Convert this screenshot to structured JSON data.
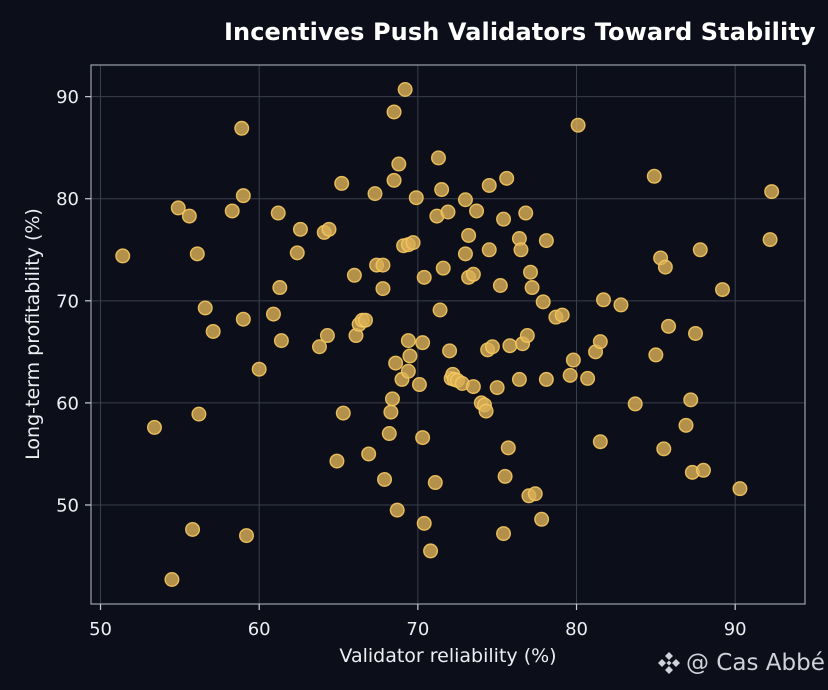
{
  "chart_data": {
    "type": "scatter",
    "title": "Incentives Push Validators Toward Stability",
    "xlabel": "Validator reliability (%)",
    "ylabel": "Long-term profitability (%)",
    "xlim": [
      49.4,
      94.4
    ],
    "ylim": [
      40.3,
      93.1
    ],
    "xticks": [
      50,
      60,
      70,
      80,
      90
    ],
    "yticks": [
      50,
      60,
      70,
      80,
      90
    ],
    "grid": true,
    "legend": "none",
    "marker_color": "#d9ae55",
    "marker_edge_color": "#f5c85f",
    "background_color": "#0c0f1a",
    "points": [
      [
        51.4,
        74.4
      ],
      [
        53.4,
        57.6
      ],
      [
        54.5,
        42.7
      ],
      [
        54.9,
        79.1
      ],
      [
        55.6,
        78.3
      ],
      [
        55.8,
        47.6
      ],
      [
        56.1,
        74.6
      ],
      [
        56.2,
        58.9
      ],
      [
        56.6,
        69.3
      ],
      [
        57.1,
        67.0
      ],
      [
        58.3,
        78.8
      ],
      [
        58.9,
        86.9
      ],
      [
        59.0,
        80.3
      ],
      [
        59.0,
        68.2
      ],
      [
        59.2,
        47.0
      ],
      [
        60.0,
        63.3
      ],
      [
        60.9,
        68.7
      ],
      [
        61.2,
        78.6
      ],
      [
        61.3,
        71.3
      ],
      [
        61.4,
        66.1
      ],
      [
        62.4,
        74.7
      ],
      [
        62.6,
        77.0
      ],
      [
        63.8,
        65.5
      ],
      [
        64.1,
        76.7
      ],
      [
        64.4,
        77.0
      ],
      [
        64.3,
        66.6
      ],
      [
        64.9,
        54.3
      ],
      [
        65.2,
        81.5
      ],
      [
        65.3,
        59.0
      ],
      [
        66.0,
        72.5
      ],
      [
        66.1,
        66.6
      ],
      [
        66.3,
        67.7
      ],
      [
        66.5,
        68.1
      ],
      [
        66.7,
        68.1
      ],
      [
        66.9,
        55.0
      ],
      [
        67.3,
        80.5
      ],
      [
        67.4,
        73.5
      ],
      [
        67.8,
        73.5
      ],
      [
        67.8,
        71.2
      ],
      [
        67.9,
        52.5
      ],
      [
        68.2,
        57.0
      ],
      [
        68.3,
        59.1
      ],
      [
        68.4,
        60.4
      ],
      [
        68.5,
        81.8
      ],
      [
        68.5,
        88.5
      ],
      [
        68.6,
        63.9
      ],
      [
        68.7,
        49.5
      ],
      [
        68.8,
        83.4
      ],
      [
        69.0,
        62.3
      ],
      [
        69.1,
        75.4
      ],
      [
        69.2,
        90.7
      ],
      [
        69.4,
        63.1
      ],
      [
        69.4,
        75.5
      ],
      [
        69.4,
        66.1
      ],
      [
        69.5,
        64.6
      ],
      [
        69.7,
        75.7
      ],
      [
        69.9,
        80.1
      ],
      [
        70.1,
        61.8
      ],
      [
        70.3,
        65.9
      ],
      [
        70.3,
        56.6
      ],
      [
        70.4,
        72.3
      ],
      [
        70.4,
        48.2
      ],
      [
        70.8,
        45.5
      ],
      [
        71.1,
        52.2
      ],
      [
        71.2,
        78.3
      ],
      [
        71.3,
        84.0
      ],
      [
        71.4,
        69.1
      ],
      [
        71.5,
        80.9
      ],
      [
        71.6,
        73.2
      ],
      [
        71.9,
        78.7
      ],
      [
        72.0,
        65.1
      ],
      [
        72.1,
        62.4
      ],
      [
        72.2,
        62.8
      ],
      [
        72.3,
        62.3
      ],
      [
        72.5,
        62.2
      ],
      [
        72.8,
        61.9
      ],
      [
        73.0,
        79.9
      ],
      [
        73.0,
        74.6
      ],
      [
        73.2,
        76.4
      ],
      [
        73.2,
        72.3
      ],
      [
        73.5,
        72.6
      ],
      [
        73.5,
        61.6
      ],
      [
        73.7,
        78.8
      ],
      [
        74.0,
        60.0
      ],
      [
        74.2,
        59.8
      ],
      [
        74.3,
        59.2
      ],
      [
        74.4,
        65.2
      ],
      [
        74.5,
        81.3
      ],
      [
        74.5,
        75.0
      ],
      [
        74.7,
        65.5
      ],
      [
        75.0,
        61.5
      ],
      [
        75.2,
        71.5
      ],
      [
        75.4,
        78.0
      ],
      [
        75.4,
        47.2
      ],
      [
        75.5,
        52.8
      ],
      [
        75.6,
        82.0
      ],
      [
        75.7,
        55.6
      ],
      [
        75.8,
        65.6
      ],
      [
        76.4,
        62.3
      ],
      [
        76.4,
        76.1
      ],
      [
        76.5,
        75.0
      ],
      [
        76.6,
        65.8
      ],
      [
        76.8,
        78.6
      ],
      [
        76.9,
        66.6
      ],
      [
        77.0,
        50.9
      ],
      [
        77.1,
        72.8
      ],
      [
        77.2,
        71.3
      ],
      [
        77.4,
        51.1
      ],
      [
        77.8,
        48.6
      ],
      [
        77.9,
        69.9
      ],
      [
        78.1,
        75.9
      ],
      [
        78.1,
        62.3
      ],
      [
        78.7,
        68.4
      ],
      [
        79.1,
        68.6
      ],
      [
        79.6,
        62.7
      ],
      [
        79.8,
        64.2
      ],
      [
        80.1,
        87.2
      ],
      [
        80.7,
        62.4
      ],
      [
        81.2,
        65.0
      ],
      [
        81.5,
        66.0
      ],
      [
        81.5,
        56.2
      ],
      [
        81.7,
        70.1
      ],
      [
        82.8,
        69.6
      ],
      [
        83.7,
        59.9
      ],
      [
        84.9,
        82.2
      ],
      [
        85.0,
        64.7
      ],
      [
        85.3,
        74.2
      ],
      [
        85.5,
        55.5
      ],
      [
        85.6,
        73.3
      ],
      [
        85.8,
        67.5
      ],
      [
        86.9,
        57.8
      ],
      [
        87.2,
        60.3
      ],
      [
        87.3,
        53.2
      ],
      [
        87.5,
        66.8
      ],
      [
        87.8,
        75.0
      ],
      [
        88.0,
        53.4
      ],
      [
        89.2,
        71.1
      ],
      [
        90.3,
        51.6
      ],
      [
        92.2,
        76.0
      ],
      [
        92.3,
        80.7
      ]
    ]
  },
  "watermark": {
    "icon": "binance-diamond-icon",
    "text": "@ Cas Abbé"
  }
}
